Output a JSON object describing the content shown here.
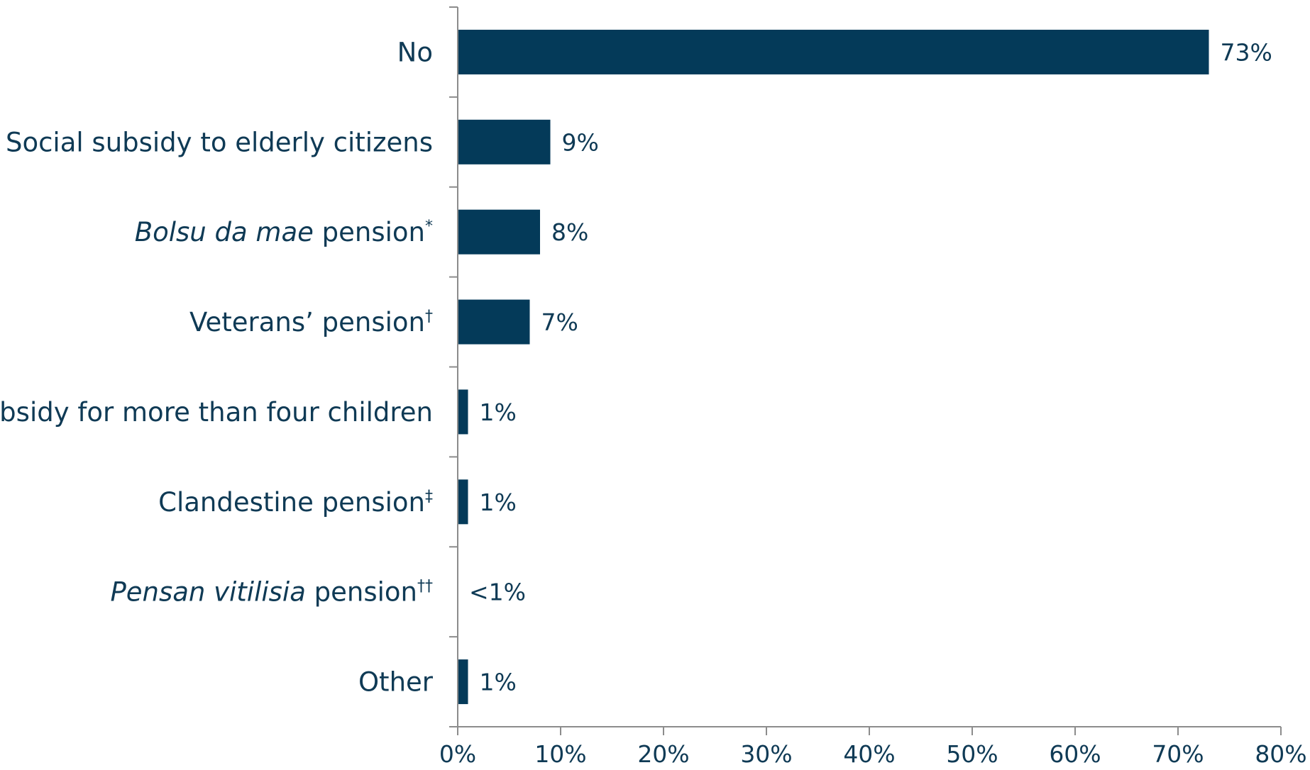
{
  "chart_data": {
    "type": "bar",
    "orientation": "horizontal",
    "title": "",
    "xlabel": "",
    "ylabel": "",
    "xlim": [
      0,
      80
    ],
    "xticks": [
      0,
      10,
      20,
      30,
      40,
      50,
      60,
      70,
      80
    ],
    "tick_suffix": "%",
    "grid": false,
    "bar_color": "#043a59",
    "categories": [
      {
        "parts": [
          {
            "text": "No",
            "italic": false
          }
        ],
        "sup": ""
      },
      {
        "parts": [
          {
            "text": "Social subsidy to elderly citizens",
            "italic": false
          }
        ],
        "sup": ""
      },
      {
        "parts": [
          {
            "text": "Bolsu da mae",
            "italic": true
          },
          {
            "text": " pension",
            "italic": false
          }
        ],
        "sup": "*"
      },
      {
        "parts": [
          {
            "text": "Veterans’ pension",
            "italic": false
          }
        ],
        "sup": "†"
      },
      {
        "parts": [
          {
            "text": "Subsidy for more than four children",
            "italic": false
          }
        ],
        "sup": ""
      },
      {
        "parts": [
          {
            "text": "Clandestine pension",
            "italic": false
          }
        ],
        "sup": "‡"
      },
      {
        "parts": [
          {
            "text": "Pensan vitilisia",
            "italic": true
          },
          {
            "text": " pension",
            "italic": false
          }
        ],
        "sup": "††"
      },
      {
        "parts": [
          {
            "text": "Other",
            "italic": false
          }
        ],
        "sup": ""
      }
    ],
    "values": [
      73,
      9,
      8,
      7,
      1,
      1,
      0.3,
      1
    ],
    "data_labels": [
      "73%",
      "9%",
      "8%",
      "7%",
      "1%",
      "1%",
      "<1%",
      "1%"
    ]
  }
}
